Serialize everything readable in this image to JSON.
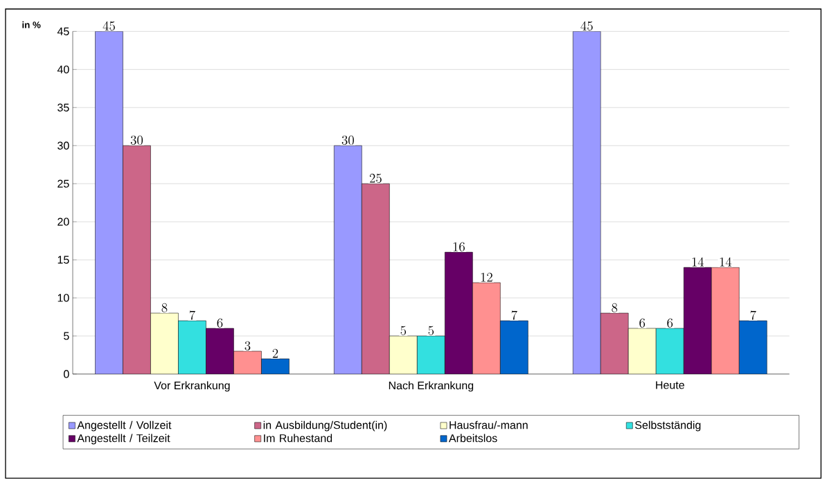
{
  "chart_data": {
    "type": "bar",
    "ylabel": "in %",
    "categories": [
      "Vor Erkrankung",
      "Nach Erkrankung",
      "Heute"
    ],
    "series": [
      {
        "name": "Angestellt / Vollzeit",
        "color": "#9999ff",
        "values": [
          45,
          30,
          45
        ]
      },
      {
        "name": "in Ausbildung/Student(in)",
        "color": "#cc6688",
        "values": [
          30,
          25,
          8
        ]
      },
      {
        "name": "Hausfrau/-mann",
        "color": "#ffffcc",
        "values": [
          8,
          5,
          6
        ]
      },
      {
        "name": "Selbstständig",
        "color": "#33e0e0",
        "values": [
          7,
          5,
          6
        ]
      },
      {
        "name": "Angestellt / Teilzeit",
        "color": "#660066",
        "values": [
          6,
          16,
          14
        ]
      },
      {
        "name": "Im Ruhestand",
        "color": "#ff9090",
        "values": [
          3,
          12,
          14
        ]
      },
      {
        "name": "Arbeitslos",
        "color": "#0066cc",
        "values": [
          2,
          7,
          7
        ]
      }
    ],
    "ylim": [
      0,
      45
    ],
    "yticks": [
      0,
      5,
      10,
      15,
      20,
      25,
      30,
      35,
      40,
      45
    ],
    "grid": "y",
    "legend": "bottom",
    "data_labels": true
  }
}
